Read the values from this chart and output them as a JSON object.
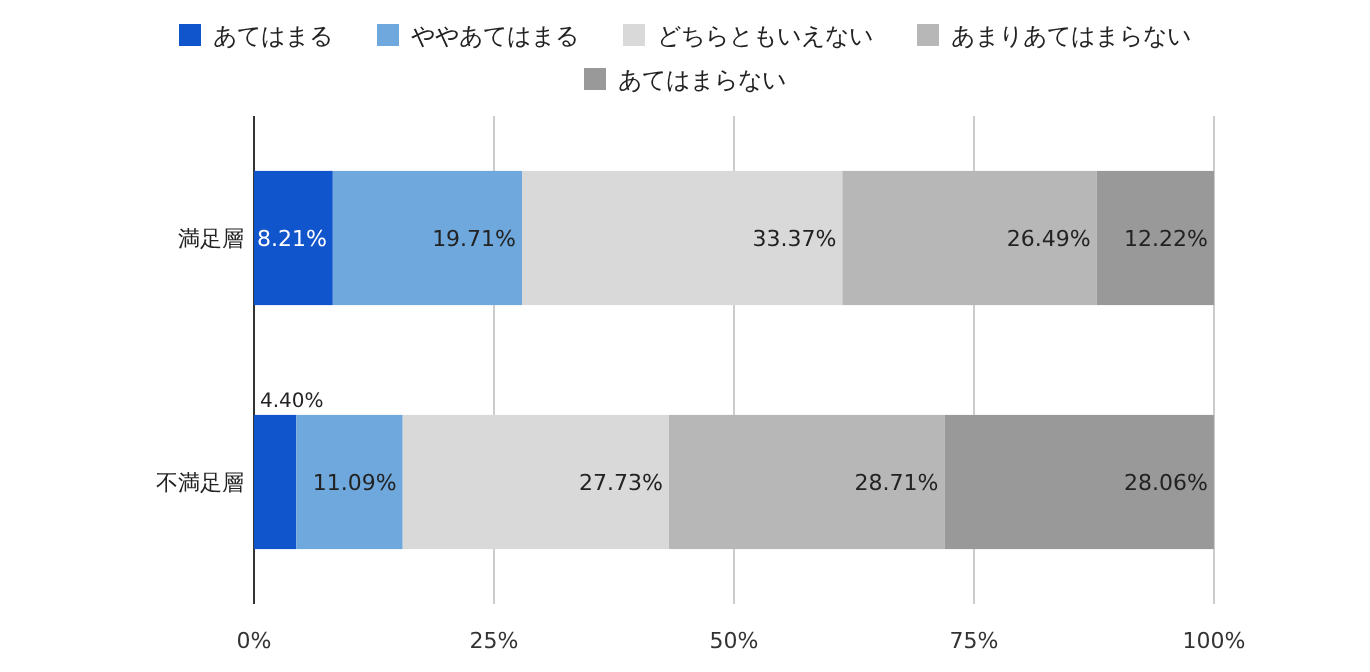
{
  "chart_data": {
    "type": "bar",
    "orientation": "horizontal",
    "stacked": true,
    "categories": [
      "満足層",
      "不満足層"
    ],
    "series": [
      {
        "name": "あてはまる",
        "color": "#1155cc",
        "values": [
          8.21,
          4.4
        ]
      },
      {
        "name": "ややあてはまる",
        "color": "#6fa8dc",
        "values": [
          19.71,
          11.09
        ]
      },
      {
        "name": "どちらともいえない",
        "color": "#d9d9d9",
        "values": [
          33.37,
          27.73
        ]
      },
      {
        "name": "あまりあてはまらない",
        "color": "#b7b7b7",
        "values": [
          26.49,
          28.71
        ]
      },
      {
        "name": "あてはまらない",
        "color": "#999999",
        "values": [
          12.22,
          28.06
        ]
      }
    ],
    "value_labels": [
      [
        "8.21%",
        "4.40%"
      ],
      [
        "19.71%",
        "11.09%"
      ],
      [
        "33.37%",
        "27.73%"
      ],
      [
        "26.49%",
        "28.71%"
      ],
      [
        "12.22%",
        "28.06%"
      ]
    ],
    "xlim": [
      0,
      100
    ],
    "xticks": [
      {
        "value": 0,
        "label": "0%"
      },
      {
        "value": 25,
        "label": "25%"
      },
      {
        "value": 50,
        "label": "50%"
      },
      {
        "value": 75,
        "label": "75%"
      },
      {
        "value": 100,
        "label": "100%"
      }
    ],
    "grid": "x",
    "legend": "top"
  }
}
